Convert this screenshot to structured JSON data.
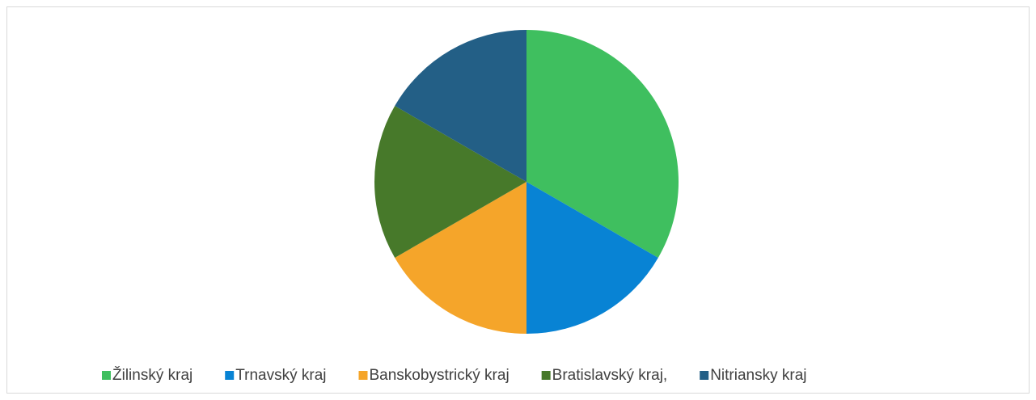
{
  "chart_data": {
    "type": "pie",
    "categories": [
      "Žilinský kraj",
      "Trnavský kraj",
      "Banskobystrický kraj",
      "Bratislavský kraj,",
      "Nitriansky kraj"
    ],
    "values": [
      2,
      1,
      1,
      1,
      1
    ],
    "colors": [
      "#3fbf5f",
      "#0883d4",
      "#f5a52a",
      "#47792a",
      "#235f86"
    ],
    "legend": "bottom"
  }
}
